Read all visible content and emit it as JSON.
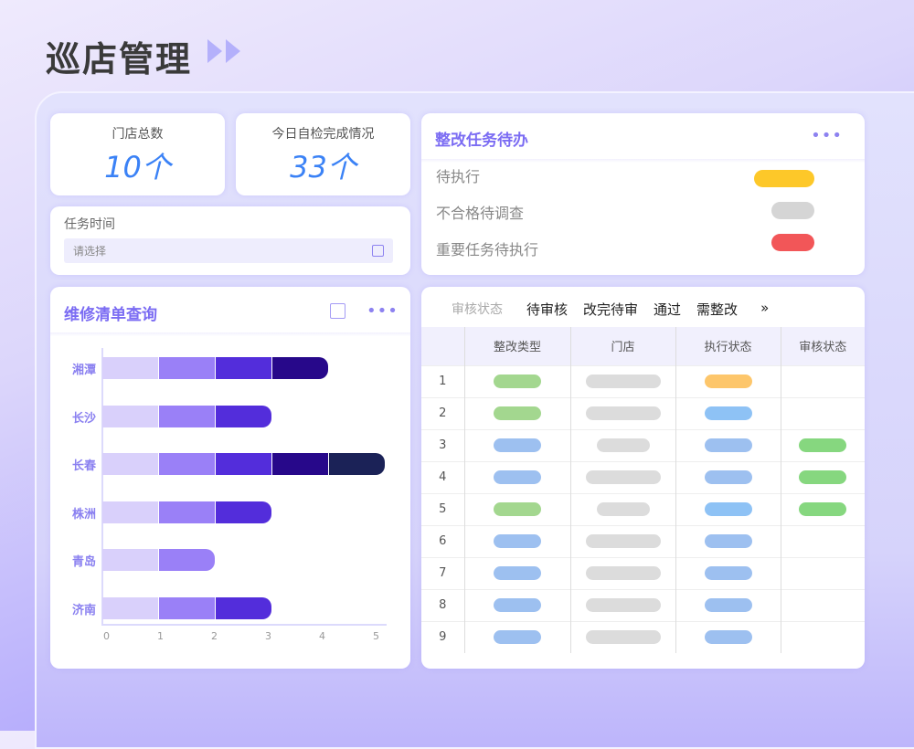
{
  "header": {
    "title": "巡店管理"
  },
  "stats": [
    {
      "label": "门店总数",
      "value": "10个"
    },
    {
      "label": "今日自检完成情况",
      "value": "33个"
    }
  ],
  "task_time": {
    "label": "任务时间",
    "placeholder": "请选择"
  },
  "todo": {
    "title": "整改任务待办",
    "items": [
      {
        "label": "待执行",
        "color": "#fdc829"
      },
      {
        "label": "不合格待调查",
        "color": "#d5d5d5"
      },
      {
        "label": "重要任务待执行",
        "color": "#f25658"
      }
    ]
  },
  "repair": {
    "title": "维修清单查询"
  },
  "chart_data": {
    "type": "bar",
    "orientation": "horizontal",
    "stacked": true,
    "categories": [
      "湘潭",
      "长沙",
      "长春",
      "株洲",
      "青岛",
      "济南"
    ],
    "series": [
      {
        "values": [
          1,
          1,
          1,
          1,
          1,
          1
        ],
        "color": "#d9d0fb"
      },
      {
        "values": [
          1,
          1,
          1,
          1,
          1,
          1
        ],
        "color": "#9a80f7"
      },
      {
        "values": [
          1,
          1,
          1,
          1,
          0,
          1
        ],
        "color": "#532ddb"
      },
      {
        "values": [
          1,
          0,
          1,
          0,
          0,
          0
        ],
        "color": "#27088a"
      },
      {
        "values": [
          0,
          0,
          1,
          0,
          0,
          0
        ],
        "color": "#1b2257"
      }
    ],
    "xlim": [
      0,
      5
    ],
    "xticks": [
      "0",
      "1",
      "2",
      "3",
      "4",
      "5"
    ],
    "grid": false
  },
  "audit": {
    "filter_label": "审核状态",
    "tabs": [
      "待审核",
      "改完待审",
      "通过",
      "需整改"
    ],
    "more": "»",
    "columns": [
      "",
      "整改类型",
      "门店",
      "执行状态",
      "审核状态"
    ],
    "rows": [
      {
        "n": "1",
        "type": "#a3d78f",
        "store": "long",
        "exec": "#fdc66b",
        "audit": null
      },
      {
        "n": "2",
        "type": "#a3d78f",
        "store": "long",
        "exec": "#8ec2f5",
        "audit": null
      },
      {
        "n": "3",
        "type": "#9dc0f0",
        "store": "short",
        "exec": "#9dc0f0",
        "audit": "#86d77f"
      },
      {
        "n": "4",
        "type": "#9dc0f0",
        "store": "long",
        "exec": "#9dc0f0",
        "audit": "#86d77f"
      },
      {
        "n": "5",
        "type": "#a3d78f",
        "store": "short",
        "exec": "#8ec2f5",
        "audit": "#86d77f"
      },
      {
        "n": "6",
        "type": "#9dc0f0",
        "store": "long",
        "exec": "#9dc0f0",
        "audit": null
      },
      {
        "n": "7",
        "type": "#9dc0f0",
        "store": "long",
        "exec": "#9dc0f0",
        "audit": null
      },
      {
        "n": "8",
        "type": "#9dc0f0",
        "store": "long",
        "exec": "#9dc0f0",
        "audit": null
      },
      {
        "n": "9",
        "type": "#9dc0f0",
        "store": "long",
        "exec": "#9dc0f0",
        "audit": null
      }
    ]
  }
}
